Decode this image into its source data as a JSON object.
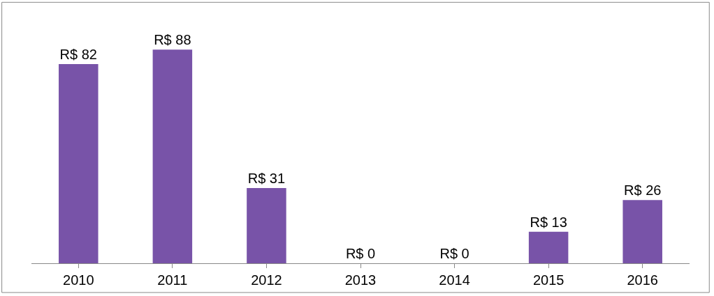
{
  "chart_data": {
    "type": "bar",
    "categories": [
      "2010",
      "2011",
      "2012",
      "2013",
      "2014",
      "2015",
      "2016"
    ],
    "values": [
      82,
      88,
      31,
      0,
      0,
      13,
      26
    ],
    "value_labels": [
      "R$ 82",
      "R$ 88",
      "R$ 31",
      "R$ 0",
      "R$ 0",
      "R$ 13",
      "R$ 26"
    ],
    "color": "#7853a8"
  }
}
